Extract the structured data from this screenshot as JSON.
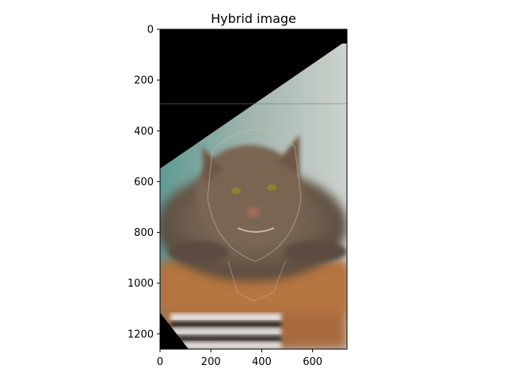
{
  "chart_data": {
    "type": "image",
    "title": "Hybrid image",
    "xlim": [
      0,
      735
    ],
    "ylim": [
      1260,
      0
    ],
    "xticks": [
      0,
      200,
      400,
      600
    ],
    "yticks": [
      0,
      200,
      400,
      600,
      800,
      1000,
      1200
    ],
    "xtick_labels": [
      "0",
      "200",
      "400",
      "600"
    ],
    "ytick_labels": [
      "0",
      "200",
      "400",
      "600",
      "800",
      "1000",
      "1200"
    ]
  }
}
